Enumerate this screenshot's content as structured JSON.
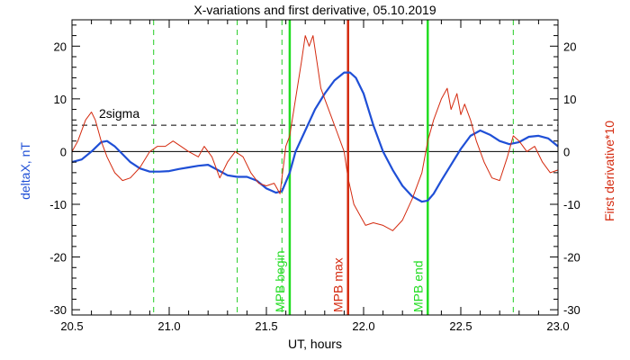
{
  "chart_data": {
    "type": "line",
    "title": "X-variations and first derivative, 05.10.2019",
    "xlabel": "UT, hours",
    "ylabel_left": "deltaX, nT",
    "ylabel_right": "First derivative*10",
    "xlim": [
      20.5,
      23.0
    ],
    "ylim": [
      -31,
      25
    ],
    "x_ticks": [
      20.5,
      21.0,
      21.5,
      22.0,
      22.5,
      23.0
    ],
    "x_tick_labels": [
      "20.5",
      "21.0",
      "21.5",
      "22.0",
      "22.5",
      "23.0"
    ],
    "y_ticks": [
      -30,
      -20,
      -10,
      0,
      10,
      20
    ],
    "y_tick_labels": [
      "-30",
      "-20",
      "-10",
      "0",
      "10",
      "20"
    ],
    "grid": false,
    "sigma_level": 5,
    "sigma_label": "2sigma",
    "zero_level": 0,
    "colors": {
      "deltaX": "#1f4fd6",
      "derivative": "#d42a0f",
      "mpb_markers": "#22dd22",
      "mpb_max_marker": "#d42a0f",
      "guide_lines": "#22cc22",
      "axes": "#000000"
    },
    "series": [
      {
        "name": "deltaX, nT",
        "axis": "left",
        "x": [
          20.5,
          20.55,
          20.6,
          20.65,
          20.68,
          20.72,
          20.76,
          20.8,
          20.85,
          20.9,
          20.95,
          21.0,
          21.05,
          21.1,
          21.15,
          21.2,
          21.25,
          21.3,
          21.35,
          21.4,
          21.45,
          21.5,
          21.55,
          21.58,
          21.62,
          21.65,
          21.7,
          21.75,
          21.8,
          21.85,
          21.9,
          21.93,
          21.96,
          22.0,
          22.05,
          22.1,
          22.15,
          22.2,
          22.25,
          22.3,
          22.33,
          22.36,
          22.4,
          22.45,
          22.5,
          22.55,
          22.6,
          22.65,
          22.7,
          22.75,
          22.8,
          22.85,
          22.9,
          22.95,
          23.0
        ],
        "values": [
          -2,
          -1.5,
          0,
          1.8,
          2.0,
          1.0,
          -0.5,
          -2,
          -3.2,
          -3.8,
          -3.8,
          -3.7,
          -3.3,
          -3.0,
          -2.7,
          -2.5,
          -3.5,
          -4.5,
          -4.8,
          -4.8,
          -5.5,
          -7,
          -7.8,
          -7.5,
          -4,
          0,
          4,
          8,
          11,
          13.5,
          15,
          15,
          14,
          11,
          5,
          0,
          -3.5,
          -6.5,
          -8.5,
          -9.5,
          -9.3,
          -8,
          -5.5,
          -2.5,
          0.5,
          3,
          4,
          3.2,
          2,
          1.4,
          1.8,
          2.8,
          3.0,
          2.5,
          1.0
        ]
      },
      {
        "name": "First derivative*10",
        "axis": "right",
        "x": [
          20.5,
          20.53,
          20.57,
          20.6,
          20.62,
          20.65,
          20.68,
          20.72,
          20.76,
          20.8,
          20.85,
          20.9,
          20.94,
          20.98,
          21.02,
          21.06,
          21.1,
          21.15,
          21.18,
          21.22,
          21.26,
          21.3,
          21.34,
          21.38,
          21.42,
          21.46,
          21.5,
          21.54,
          21.57,
          21.6,
          21.62,
          21.65,
          21.68,
          21.7,
          21.72,
          21.74,
          21.76,
          21.78,
          21.8,
          21.83,
          21.86,
          21.9,
          21.92,
          21.95,
          21.98,
          22.01,
          22.05,
          22.1,
          22.15,
          22.2,
          22.25,
          22.3,
          22.33,
          22.36,
          22.4,
          22.43,
          22.45,
          22.48,
          22.5,
          22.52,
          22.55,
          22.58,
          22.62,
          22.66,
          22.7,
          22.74,
          22.77,
          22.8,
          22.84,
          22.88,
          22.92,
          22.96,
          23.0
        ],
        "values": [
          0,
          2,
          6,
          7.5,
          6,
          2,
          -1,
          -4,
          -5.5,
          -5,
          -3,
          0,
          1,
          1,
          2,
          1,
          0,
          -1,
          1,
          -1,
          -5,
          -2,
          0,
          -1,
          -4,
          -6,
          -6.5,
          -6,
          -8,
          1,
          3,
          10,
          17,
          22,
          20,
          22,
          17,
          12,
          10,
          7,
          4,
          0,
          -5,
          -10,
          -12,
          -14,
          -13.5,
          -14,
          -15,
          -13,
          -9,
          -4,
          2,
          6,
          10,
          12,
          8,
          11,
          7,
          9,
          6,
          2,
          -2,
          -5,
          -5.5,
          -1,
          3,
          2,
          0,
          1,
          -2,
          -4,
          -3.5
        ]
      }
    ],
    "markers": [
      {
        "label": "MPB begin",
        "x": 21.62,
        "color_key": "mpb_markers"
      },
      {
        "label": "MPB max",
        "x": 21.92,
        "color_key": "mpb_max_marker"
      },
      {
        "label": "MPB end",
        "x": 22.33,
        "color_key": "mpb_markers"
      }
    ],
    "guide_lines_x": [
      20.92,
      21.35,
      21.58,
      22.77
    ]
  }
}
